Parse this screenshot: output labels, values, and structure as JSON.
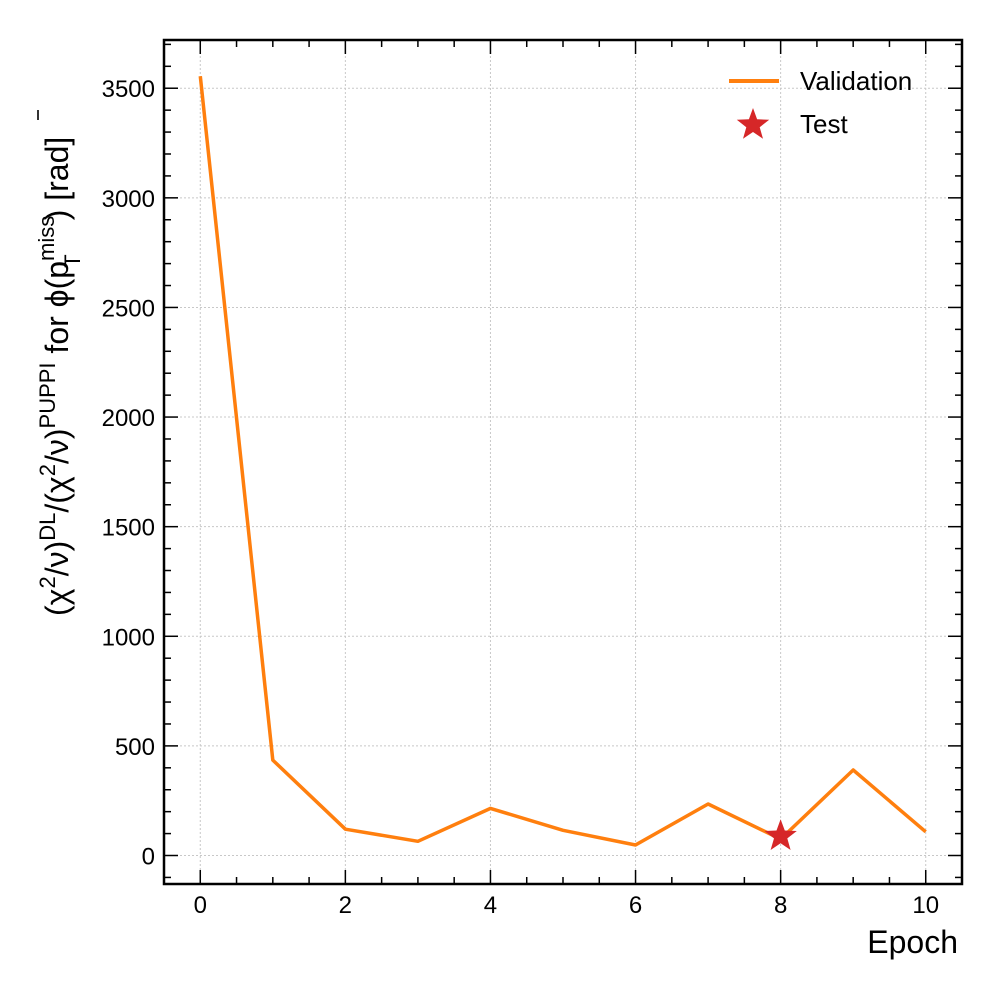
{
  "chart_data": {
    "type": "line",
    "xlabel": "Epoch",
    "ylabel": {
      "open1": "(",
      "chi1": "χ",
      "sq1": "2",
      "nu1": "/ν)",
      "sup_dl": "DL",
      "slash": "/(",
      "chi2": "χ",
      "sq2": "2",
      "nu2": "/ν)",
      "sup_puppi": "PUPPI",
      "middle": " for ϕ(",
      "p": "p",
      "sup_miss": "miss",
      "sub_t": "T",
      "close": ") [rad]"
    },
    "xlim": [
      -0.5,
      10.5
    ],
    "ylim": [
      -130,
      3720
    ],
    "xticks": [
      0,
      2,
      4,
      6,
      8,
      10
    ],
    "yticks": [
      0,
      500,
      1000,
      1500,
      2000,
      2500,
      3000,
      3500
    ],
    "grid": true,
    "legend_position": "top-right",
    "series": [
      {
        "name": "Validation",
        "kind": "line",
        "color": "#ff7f0e",
        "x": [
          0,
          1,
          2,
          3,
          4,
          5,
          6,
          7,
          8,
          9,
          10
        ],
        "y": [
          3555,
          435,
          120,
          65,
          215,
          115,
          48,
          235,
          75,
          390,
          108
        ]
      },
      {
        "name": "Test",
        "kind": "star",
        "color": "#d62728",
        "x": [
          8
        ],
        "y": [
          88
        ]
      }
    ]
  }
}
